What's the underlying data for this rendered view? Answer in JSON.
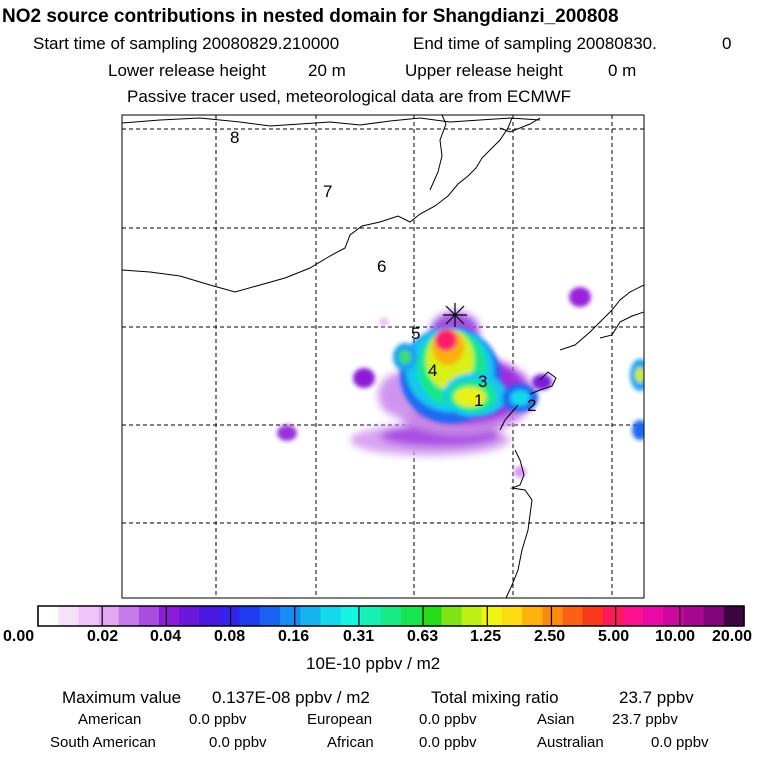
{
  "header": {
    "title": "NO2 source contributions in nested domain for Shangdianzi_200808",
    "start_label": "Start time of sampling 20080829.210000",
    "end_label": "End time of sampling 20080830.",
    "end_value": "0",
    "lower_label": "Lower release height",
    "lower_value": "20 m",
    "upper_label": "Upper release height",
    "upper_value": "0 m",
    "tracer_note": "Passive tracer used, meteorological data are from ECMWF"
  },
  "map": {
    "region_labels": [
      "1",
      "2",
      "3",
      "4",
      "5",
      "6",
      "7",
      "8"
    ],
    "receptor_marker": "star-marker"
  },
  "colorbar": {
    "colors": [
      "#ffffff",
      "#f6e1fb",
      "#eec6f7",
      "#e4a8f2",
      "#c77ae9",
      "#a94de0",
      "#8c1cd6",
      "#6b18d8",
      "#4b17e0",
      "#3424ea",
      "#1f3cf0",
      "#1a62f2",
      "#178cf2",
      "#15b4f0",
      "#14d8ee",
      "#16f4e6",
      "#17f0b6",
      "#18ea86",
      "#16e452",
      "#26dc18",
      "#7ee416",
      "#bff014",
      "#f0f414",
      "#fcdc10",
      "#fcb30e",
      "#fc8a10",
      "#fc6014",
      "#f83a1a",
      "#fc1a5a",
      "#fc1090",
      "#e80aa6",
      "#cc08a0",
      "#a80890",
      "#80087a",
      "#3c0640"
    ],
    "tick_labels": [
      "0.00",
      "0.02",
      "0.04",
      "0.08",
      "0.16",
      "0.31",
      "0.63",
      "1.25",
      "2.50",
      "5.00",
      "10.00",
      "20.00"
    ],
    "unit": "10E-10 ppbv / m2"
  },
  "footer": {
    "max_label": "Maximum value",
    "max_value": "0.137E-08 ppbv / m2",
    "total_label": "Total mixing ratio",
    "total_value": "23.7 ppbv",
    "regions": [
      {
        "name": "American",
        "value": "0.0 ppbv"
      },
      {
        "name": "European",
        "value": "0.0 ppbv"
      },
      {
        "name": "Asian",
        "value": "23.7 ppbv"
      },
      {
        "name": "South American",
        "value": "0.0 ppbv"
      },
      {
        "name": "African",
        "value": "0.0 ppbv"
      },
      {
        "name": "Australian",
        "value": "0.0 ppbv"
      }
    ]
  }
}
